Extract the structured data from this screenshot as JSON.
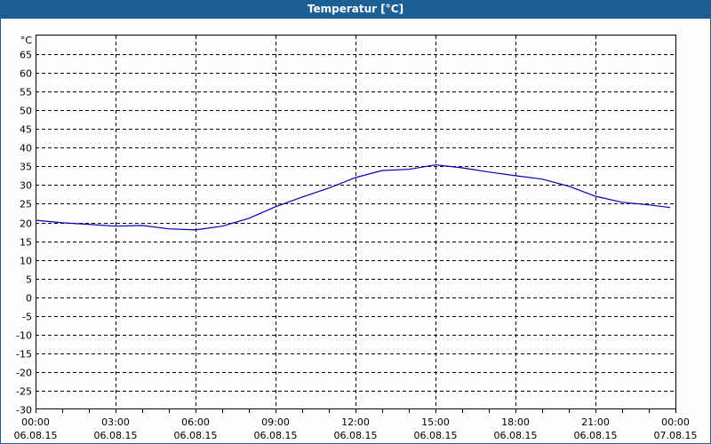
{
  "window": {
    "title": "Temperatur [°C]"
  },
  "colors": {
    "titlebar": "#1c5f94",
    "line": "#0000b4",
    "grid": "#000000",
    "background": "#fcfdfc"
  },
  "chart_data": {
    "type": "line",
    "title": "Temperatur [°C]",
    "xlabel": "",
    "ylabel": "°C",
    "ylim": [
      -30,
      70
    ],
    "yticks": [
      -30,
      -25,
      -20,
      -15,
      -10,
      -5,
      0,
      5,
      10,
      15,
      20,
      25,
      30,
      35,
      40,
      45,
      50,
      55,
      60,
      65
    ],
    "xtick_labels": [
      {
        "time": "00:00",
        "date": "06.08.15"
      },
      {
        "time": "03:00",
        "date": "06.08.15"
      },
      {
        "time": "06:00",
        "date": "06.08.15"
      },
      {
        "time": "09:00",
        "date": "06.08.15"
      },
      {
        "time": "12:00",
        "date": "06.08.15"
      },
      {
        "time": "15:00",
        "date": "06.08.15"
      },
      {
        "time": "18:00",
        "date": "06.08.15"
      },
      {
        "time": "21:00",
        "date": "06.08.15"
      },
      {
        "time": "00:00",
        "date": "07.08.15"
      }
    ],
    "grid": true,
    "grid_style": "dashed",
    "legend": false,
    "series": [
      {
        "name": "Temperatur",
        "x_hours": [
          0,
          1,
          2,
          3,
          4,
          5,
          6,
          7,
          8,
          9,
          10,
          11,
          12,
          13,
          14,
          15,
          16,
          17,
          18,
          19,
          20,
          21,
          22,
          23,
          23.8
        ],
        "values": [
          20.6,
          19.9,
          19.5,
          19.0,
          19.2,
          18.3,
          18.0,
          19.0,
          21.1,
          24.2,
          26.8,
          29.2,
          32.0,
          33.9,
          34.2,
          35.4,
          34.6,
          33.5,
          32.5,
          31.6,
          29.7,
          27.0,
          25.4,
          24.7,
          24.0
        ]
      }
    ]
  }
}
